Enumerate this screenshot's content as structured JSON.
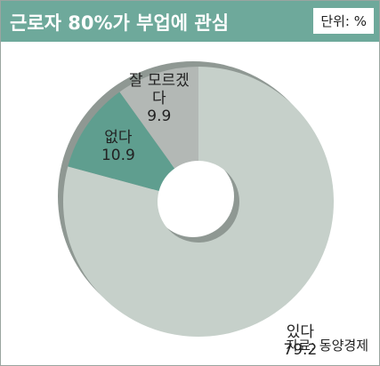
{
  "chart_data": {
    "type": "donut",
    "title": "근로자 80%가 부업에 관심",
    "unit": "단위: %",
    "source": "자료: 동양경제",
    "categories": [
      "있다",
      "없다",
      "잘 모르겠다"
    ],
    "values": [
      79.2,
      10.9,
      9.9
    ],
    "colors": [
      "#c6d0ca",
      "#5f9e8f",
      "#b3b8b5"
    ]
  }
}
